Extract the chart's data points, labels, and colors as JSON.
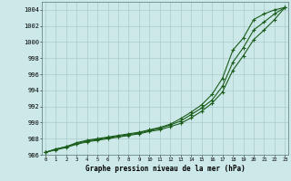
{
  "title": "Graphe pression niveau de la mer (hPa)",
  "x_labels": [
    0,
    1,
    2,
    3,
    4,
    5,
    6,
    7,
    8,
    9,
    10,
    11,
    12,
    13,
    14,
    15,
    16,
    17,
    18,
    19,
    20,
    21,
    22,
    23
  ],
  "ylim": [
    986,
    1005
  ],
  "yticks": [
    986,
    988,
    990,
    992,
    994,
    996,
    998,
    1000,
    1002,
    1004
  ],
  "line_color": "#1a5c1a",
  "bg_color": "#cce8e8",
  "grid_color": "#aacccc",
  "series": [
    [
      986.3,
      986.7,
      987.0,
      987.5,
      987.8,
      988.0,
      988.2,
      988.4,
      988.6,
      988.8,
      989.1,
      989.4,
      989.8,
      990.5,
      991.3,
      992.2,
      993.5,
      995.5,
      999.0,
      1000.5,
      1002.8,
      1003.5,
      1004.0,
      1004.3
    ],
    [
      986.3,
      986.7,
      987.0,
      987.4,
      987.7,
      987.9,
      988.1,
      988.3,
      988.5,
      988.7,
      989.0,
      989.3,
      989.7,
      990.2,
      991.0,
      991.8,
      992.8,
      994.5,
      997.5,
      999.3,
      1001.5,
      1002.5,
      1003.5,
      1004.3
    ],
    [
      986.3,
      986.6,
      986.9,
      987.3,
      987.6,
      987.8,
      988.0,
      988.2,
      988.4,
      988.6,
      988.9,
      989.1,
      989.5,
      989.9,
      990.6,
      991.4,
      992.4,
      993.8,
      996.5,
      998.3,
      1000.3,
      1001.5,
      1002.8,
      1004.3
    ]
  ]
}
